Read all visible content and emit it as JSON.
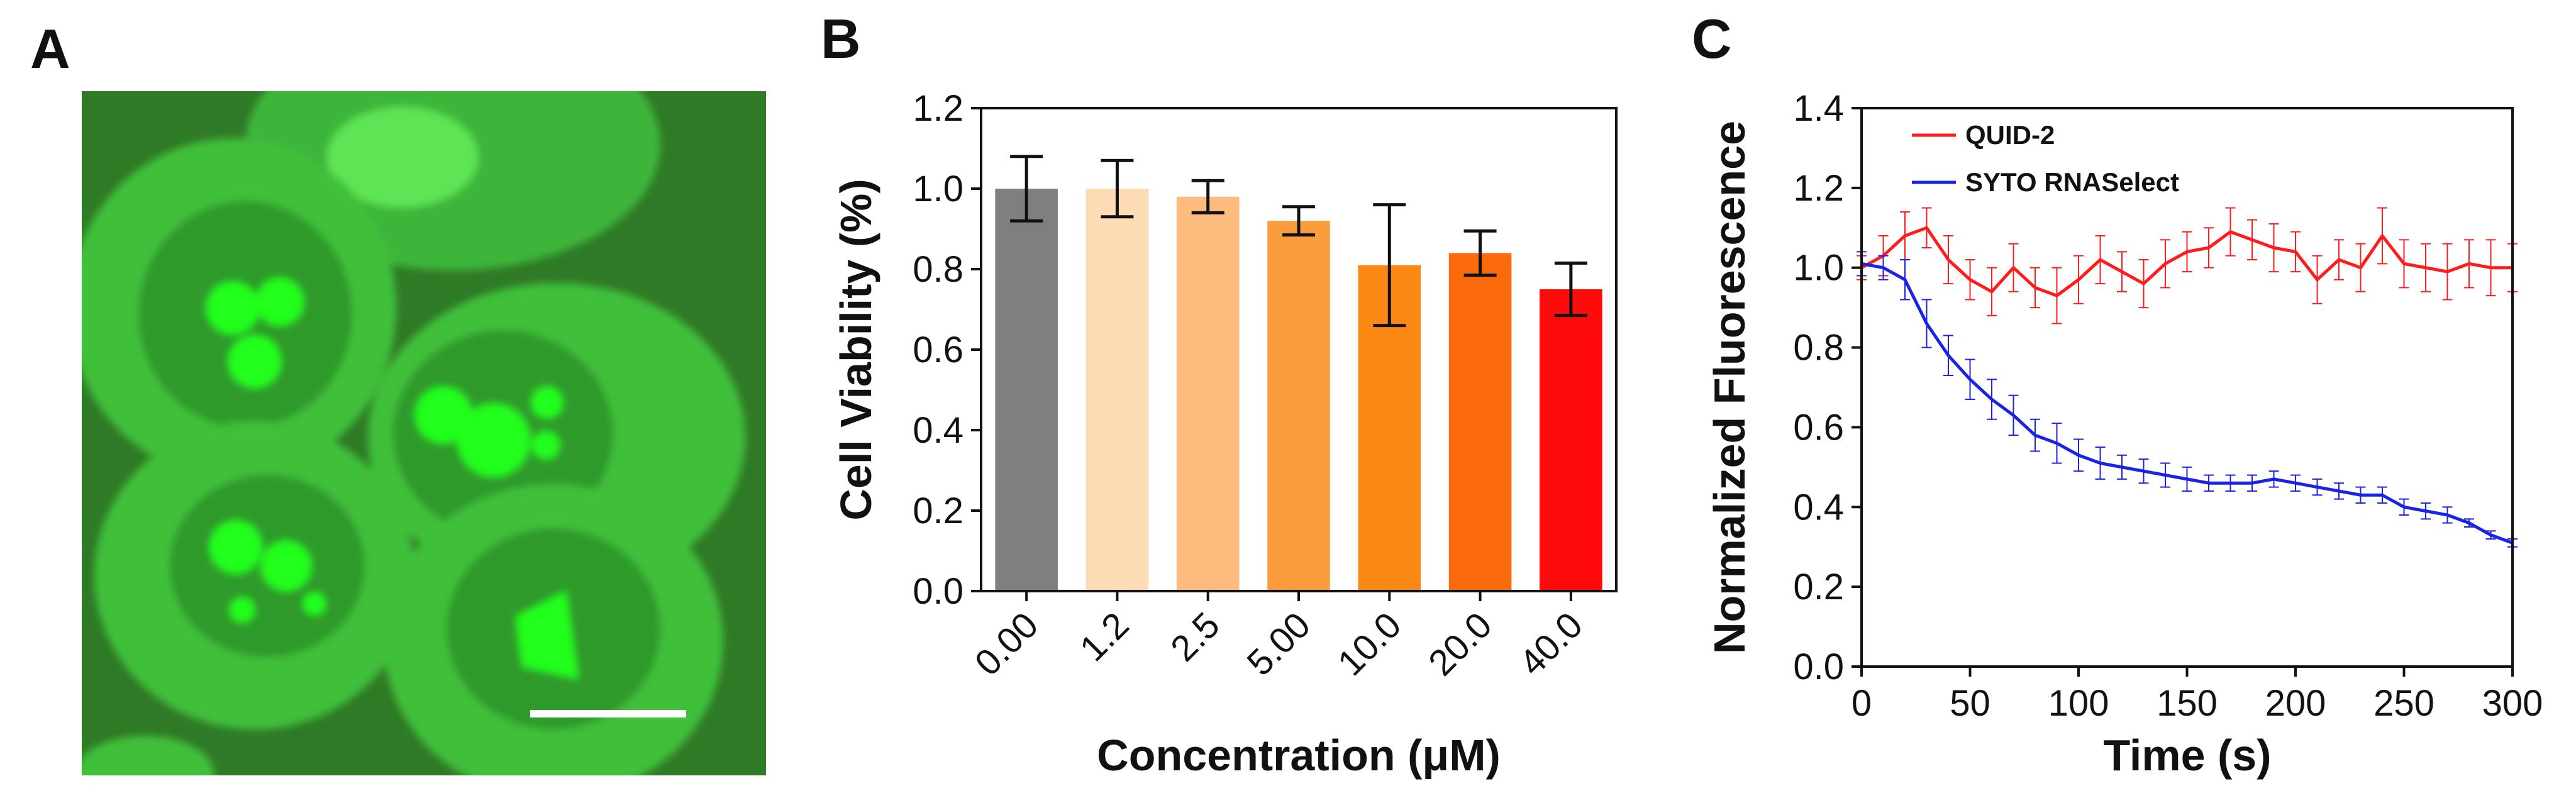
{
  "panels": {
    "a": {
      "letter": "A",
      "image_description": "Confocal fluorescence micrograph of cells stained green (QUID-2), bright nucleoli, scale bar bottom-right"
    },
    "b": {
      "letter": "B"
    },
    "c": {
      "letter": "C"
    }
  },
  "colors": {
    "micrograph_bg": "#2f7a26",
    "cytoplasm": "#3fbf3a",
    "nucleus": "#2f9a2c",
    "nucleolus": "#22ff1a",
    "line_red": "#ff1c1c",
    "line_blue": "#1a22e6"
  },
  "chart_data": [
    {
      "id": "panel-b",
      "type": "bar",
      "title": "",
      "xlabel": "Concentration (μM)",
      "ylabel": "Cell Viability (%)",
      "categories": [
        "0.00",
        "1.2",
        "2.5",
        "5.00",
        "10.0",
        "20.0",
        "40.0"
      ],
      "values": [
        1.0,
        1.0,
        0.98,
        0.92,
        0.81,
        0.84,
        0.75
      ],
      "errors": [
        0.08,
        0.07,
        0.04,
        0.035,
        0.15,
        0.055,
        0.065
      ],
      "bar_colors": [
        "#7f7f7f",
        "#fddcb5",
        "#fdbb7d",
        "#fb9c3c",
        "#fb8812",
        "#fc6a0e",
        "#ff0a0a"
      ],
      "ylim": [
        0,
        1.2
      ],
      "yticks": [
        "0.0",
        "0.2",
        "0.4",
        "0.6",
        "0.8",
        "1.0",
        "1.2"
      ]
    },
    {
      "id": "panel-c",
      "type": "line",
      "title": "",
      "xlabel": "Time (s)",
      "ylabel": "Normalized Fluorescence",
      "xlim": [
        0,
        300
      ],
      "ylim": [
        0,
        1.4
      ],
      "xticks": [
        "0",
        "50",
        "100",
        "150",
        "200",
        "250",
        "300"
      ],
      "yticks": [
        "0.0",
        "0.2",
        "0.4",
        "0.6",
        "0.8",
        "1.0",
        "1.2",
        "1.4"
      ],
      "legend_position": "top-left",
      "series": [
        {
          "name": "QUID-2",
          "color": "#ff1c1c",
          "x": [
            0,
            10,
            20,
            30,
            40,
            50,
            60,
            70,
            80,
            90,
            100,
            110,
            120,
            130,
            140,
            150,
            160,
            170,
            180,
            190,
            200,
            210,
            220,
            230,
            240,
            250,
            260,
            270,
            280,
            290,
            300
          ],
          "y": [
            1.0,
            1.03,
            1.08,
            1.1,
            1.02,
            0.97,
            0.94,
            1.0,
            0.95,
            0.93,
            0.97,
            1.02,
            0.99,
            0.96,
            1.01,
            1.04,
            1.05,
            1.09,
            1.07,
            1.05,
            1.04,
            0.97,
            1.02,
            1.0,
            1.08,
            1.01,
            1.0,
            0.99,
            1.01,
            1.0,
            1.0
          ],
          "errors": [
            0.03,
            0.05,
            0.06,
            0.05,
            0.06,
            0.05,
            0.06,
            0.06,
            0.05,
            0.07,
            0.06,
            0.06,
            0.05,
            0.06,
            0.06,
            0.05,
            0.05,
            0.06,
            0.05,
            0.06,
            0.05,
            0.06,
            0.05,
            0.06,
            0.07,
            0.06,
            0.06,
            0.07,
            0.06,
            0.07,
            0.06
          ]
        },
        {
          "name": "SYTO RNASelect",
          "color": "#1a22e6",
          "x": [
            0,
            10,
            20,
            30,
            40,
            50,
            60,
            70,
            80,
            90,
            100,
            110,
            120,
            130,
            140,
            150,
            160,
            170,
            180,
            190,
            200,
            210,
            220,
            230,
            240,
            250,
            260,
            270,
            280,
            290,
            300
          ],
          "y": [
            1.01,
            1.0,
            0.97,
            0.86,
            0.78,
            0.72,
            0.67,
            0.63,
            0.58,
            0.56,
            0.53,
            0.51,
            0.5,
            0.49,
            0.48,
            0.47,
            0.46,
            0.46,
            0.46,
            0.47,
            0.46,
            0.45,
            0.44,
            0.43,
            0.43,
            0.4,
            0.39,
            0.38,
            0.36,
            0.33,
            0.31
          ],
          "errors": [
            0.03,
            0.03,
            0.05,
            0.06,
            0.05,
            0.05,
            0.05,
            0.05,
            0.04,
            0.05,
            0.04,
            0.04,
            0.03,
            0.03,
            0.03,
            0.03,
            0.02,
            0.02,
            0.02,
            0.02,
            0.02,
            0.02,
            0.02,
            0.02,
            0.02,
            0.02,
            0.02,
            0.02,
            0.01,
            0.01,
            0.01
          ]
        }
      ]
    }
  ]
}
